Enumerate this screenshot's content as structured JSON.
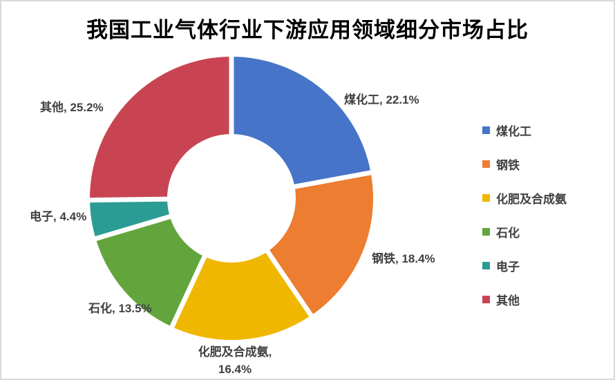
{
  "chart_data": {
    "type": "pie",
    "subtype": "donut",
    "title": "我国工业气体行业下游应用领域细分市场占比",
    "unit": "%",
    "categories": [
      "煤化工",
      "钢铁",
      "化肥及合成氨",
      "石化",
      "电子",
      "其他"
    ],
    "values": [
      22.1,
      18.4,
      16.4,
      13.5,
      4.4,
      25.2
    ],
    "colors": [
      "#4674C9",
      "#ED7D31",
      "#EFB700",
      "#63A53D",
      "#2B9C93",
      "#C94452"
    ],
    "start_angle_deg": -90,
    "direction": "clockwise",
    "legend_position": "right",
    "label_color": "#404040",
    "callouts": [
      "煤化工, 22.1%",
      "钢铁, 18.4%",
      "化肥及合成氨,\n16.4%",
      "石化, 13.5%",
      "电子, 4.4%",
      "其他, 25.2%"
    ],
    "legend": [
      "煤化工",
      "钢铁",
      "化肥及合成氨",
      "石化",
      "电子",
      "其他"
    ]
  }
}
